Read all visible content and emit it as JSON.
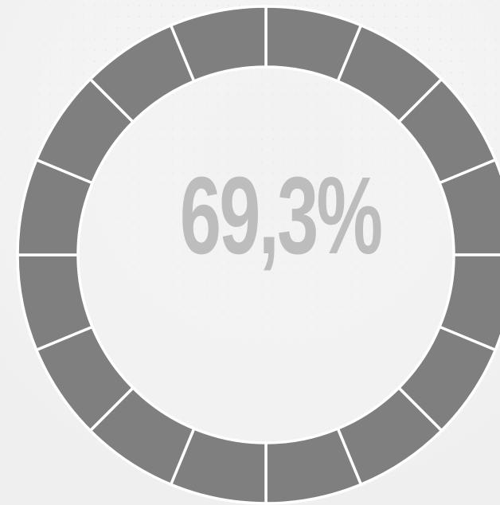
{
  "gauge": {
    "label": "69,3%"
  }
}
